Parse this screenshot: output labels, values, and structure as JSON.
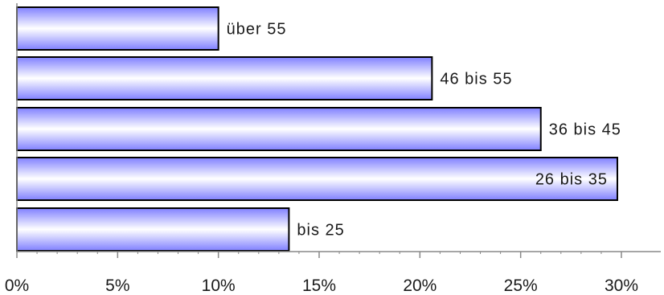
{
  "chart_data": {
    "type": "bar",
    "orientation": "horizontal",
    "categories": [
      "über 55",
      "46 bis 55",
      "36 bis 45",
      "26 bis 35",
      "bis 25"
    ],
    "values": [
      10.0,
      20.6,
      26.0,
      29.8,
      13.5
    ],
    "x_unit": "%",
    "xlim": [
      0,
      30
    ],
    "x_ticks": [
      "0%",
      "5%",
      "10%",
      "15%",
      "20%",
      "25%",
      "30%"
    ],
    "title": "",
    "xlabel": "",
    "ylabel": "",
    "grid": false,
    "legend": "none",
    "colors": {
      "bar_edge": "#8080ff",
      "bar_center": "#ffffff",
      "bar_outline": "#000000",
      "axis": "#888888"
    }
  }
}
